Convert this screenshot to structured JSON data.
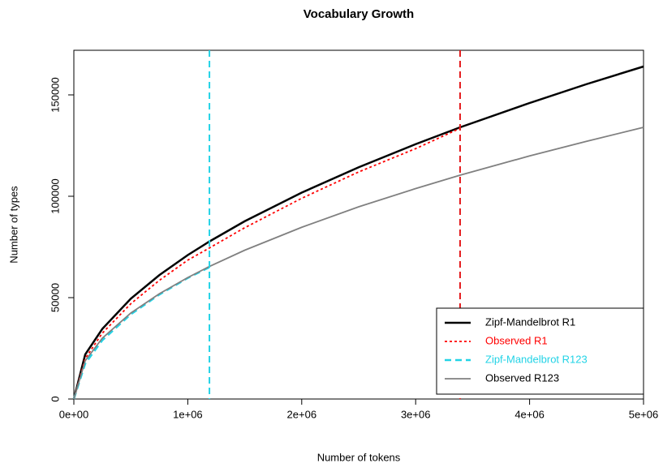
{
  "chart_data": {
    "type": "line",
    "title": "Vocabulary Growth",
    "x_label": "Number of tokens",
    "y_label": "Number of types",
    "x": [
      0,
      100000,
      250000,
      500000,
      750000,
      1000000,
      1190000,
      1500000,
      2000000,
      2500000,
      3000000,
      3390000,
      4000000,
      4500000,
      5000000
    ],
    "series": [
      {
        "name": "Zipf-Mandelbrot R1",
        "color": "#000000",
        "dash": "solid",
        "width": 2.5,
        "values": [
          0,
          22000,
          34600,
          49500,
          61100,
          71000,
          77700,
          87700,
          101800,
          114300,
          125700,
          134000,
          146000,
          155300,
          164000
        ]
      },
      {
        "name": "Observed R1",
        "color": "#ff0000",
        "dash": "dotted",
        "width": 1.8,
        "values": [
          0,
          20000,
          32500,
          47000,
          58500,
          68500,
          74500,
          84500,
          99000,
          112000,
          123500,
          133500,
          null,
          null,
          null
        ]
      },
      {
        "name": "Zipf-Mandelbrot R123",
        "color": "#22d3e6",
        "dash": "dashed",
        "width": 2.5,
        "values": [
          0,
          17500,
          29000,
          41800,
          51500,
          59700,
          65000,
          null,
          null,
          null,
          null,
          null,
          null,
          null,
          null
        ]
      },
      {
        "name": "Observed R123",
        "color": "#808080",
        "dash": "solid",
        "width": 1.8,
        "values": [
          0,
          18900,
          30000,
          42400,
          51900,
          59900,
          65400,
          73400,
          84700,
          94800,
          103800,
          110400,
          119900,
          127100,
          134000
        ]
      }
    ],
    "legend_text_colors": [
      "#000000",
      "#ff0000",
      "#22d3e6",
      "#000000"
    ],
    "vlines": [
      {
        "x": 1190000,
        "color": "#22d3e6"
      },
      {
        "x": 3390000,
        "color": "#e41a1c"
      }
    ],
    "xlim": [
      0,
      5000000
    ],
    "ylim": [
      0,
      172000
    ],
    "xticks": [
      {
        "value": 0,
        "label": "0e+00"
      },
      {
        "value": 1000000,
        "label": "1e+06"
      },
      {
        "value": 2000000,
        "label": "2e+06"
      },
      {
        "value": 3000000,
        "label": "3e+06"
      },
      {
        "value": 4000000,
        "label": "4e+06"
      },
      {
        "value": 5000000,
        "label": "5e+06"
      }
    ],
    "yticks": [
      0,
      50000,
      100000,
      150000
    ],
    "legend": "bottom-right"
  }
}
